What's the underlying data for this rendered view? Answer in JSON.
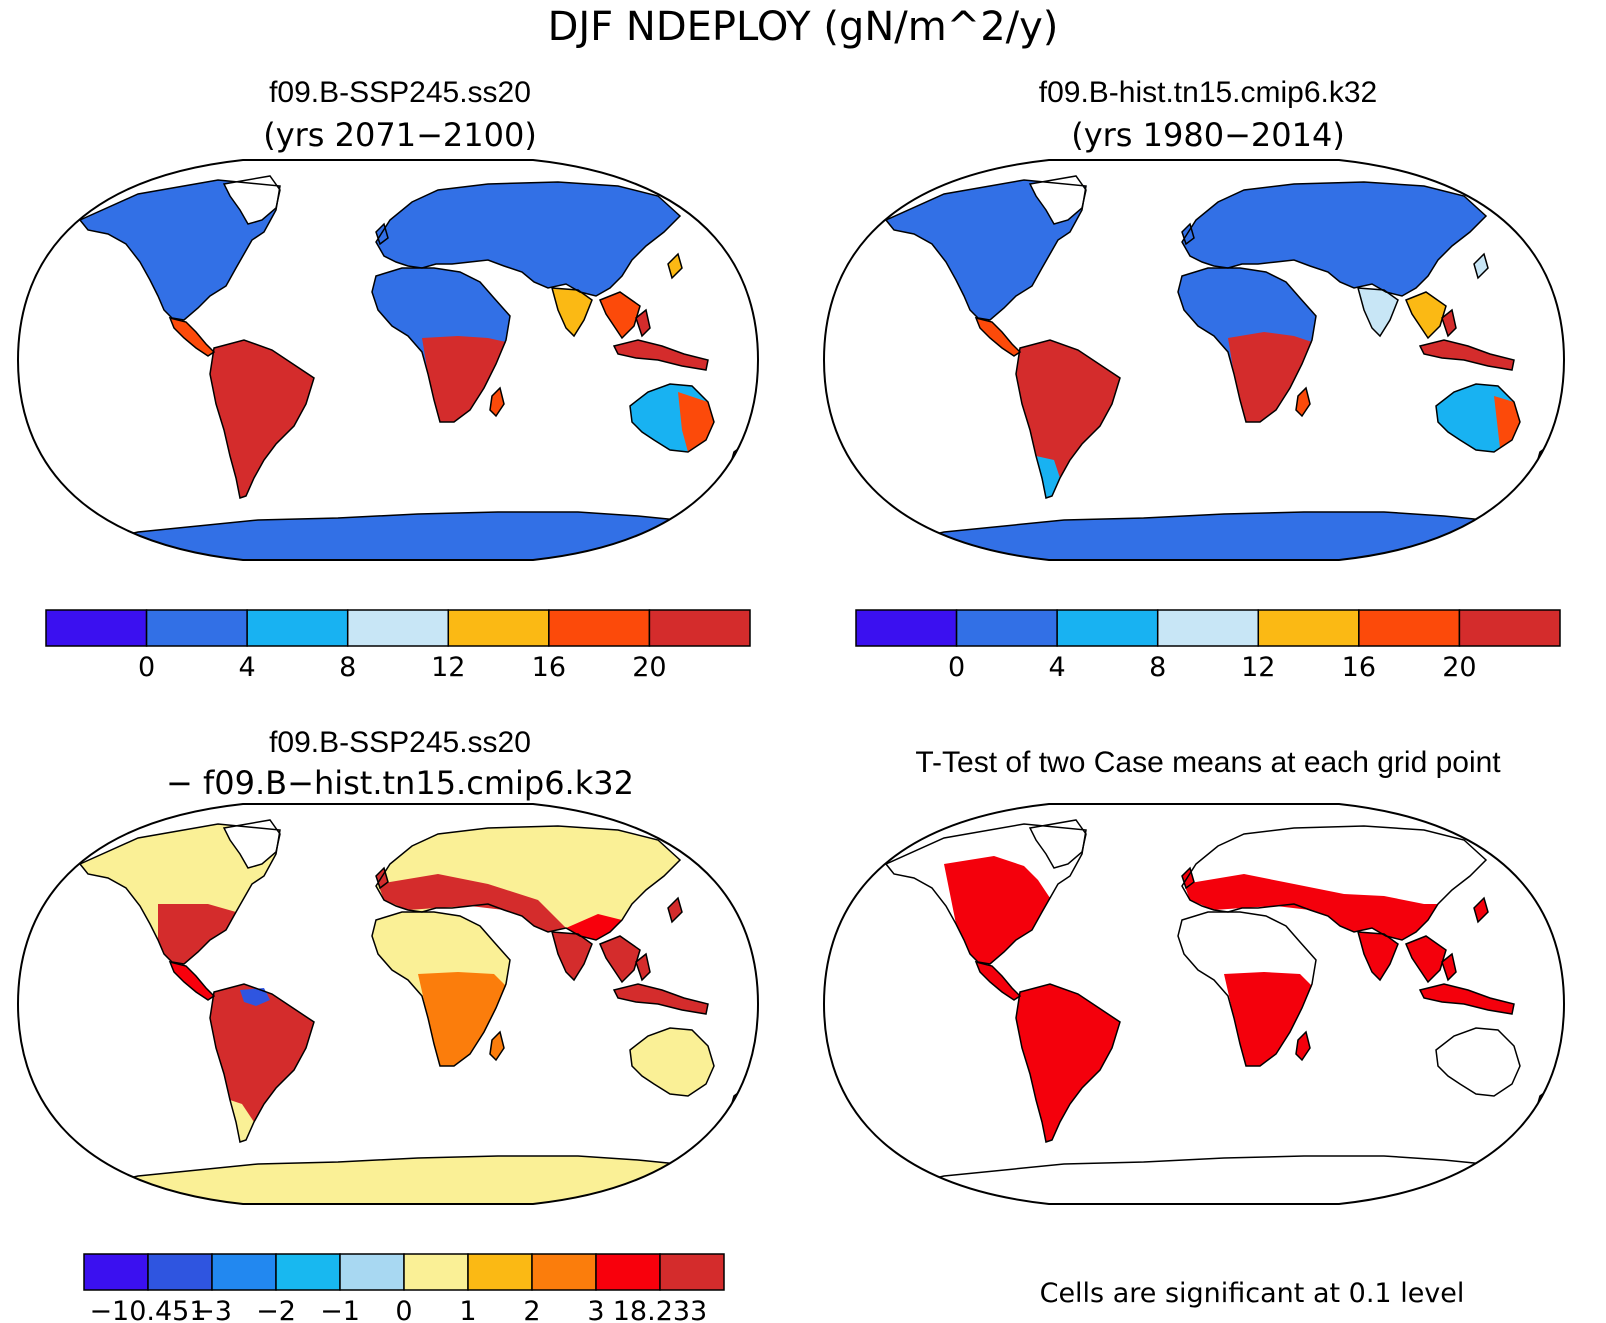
{
  "figure": {
    "title": "DJF NDEPLOY (gN/m^2/y)"
  },
  "panels": [
    {
      "id": "case1",
      "heading": "f09.B-SSP245.ss20",
      "subheading": "(yrs 2071−2100)",
      "projection": "Robinson",
      "colorbar": {
        "colors": [
          "#3b10f0",
          "#3270e6",
          "#18b2f2",
          "#c8e6f6",
          "#fbb914",
          "#fc4a0a",
          "#d42c2c"
        ],
        "tick_labels": [
          "0",
          "4",
          "8",
          "12",
          "16",
          "20"
        ]
      }
    },
    {
      "id": "case2",
      "heading": "f09.B-hist.tn15.cmip6.k32",
      "subheading": "(yrs 1980−2014)",
      "projection": "Robinson",
      "colorbar": {
        "colors": [
          "#3b10f0",
          "#3270e6",
          "#18b2f2",
          "#c8e6f6",
          "#fbb914",
          "#fc4a0a",
          "#d42c2c"
        ],
        "tick_labels": [
          "0",
          "4",
          "8",
          "12",
          "16",
          "20"
        ]
      }
    },
    {
      "id": "difference",
      "heading": "f09.B-SSP245.ss20",
      "subheading": "− f09.B−hist.tn15.cmip6.k32",
      "projection": "Robinson",
      "colorbar": {
        "colors": [
          "#3b10f0",
          "#2f55e0",
          "#2288f0",
          "#18b8f0",
          "#a8d8f2",
          "#faf096",
          "#fbb914",
          "#fb7d0c",
          "#f8000c",
          "#d42c2c"
        ],
        "tick_labels": [
          "−10.451",
          "−3",
          "−2",
          "−1",
          "0",
          "1",
          "2",
          "3",
          "18.233"
        ]
      }
    },
    {
      "id": "ttest",
      "heading": "T-Test of two Case means at each grid point",
      "projection": "Robinson",
      "note": "Cells are significant at 0.1 level",
      "significant_color": "#f4000c"
    }
  ]
}
